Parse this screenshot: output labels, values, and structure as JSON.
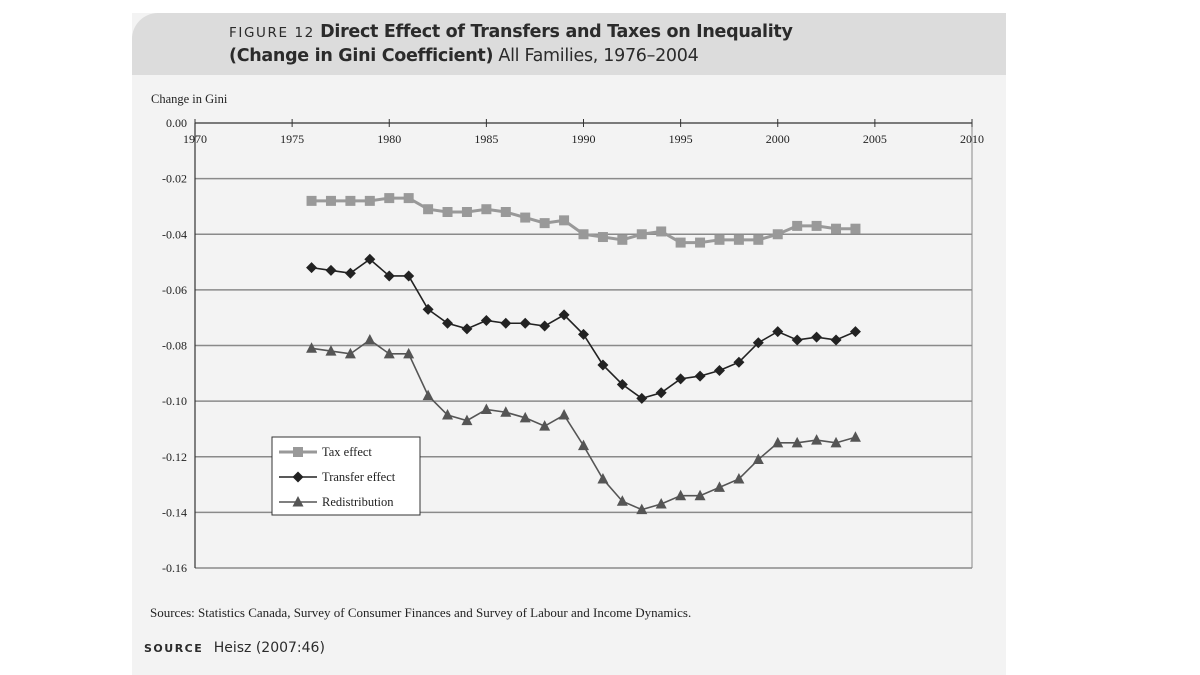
{
  "header": {
    "figure_label": "FIGURE 12",
    "title_line1": "Direct Effect of Transfers and Taxes on Inequality",
    "title_line2_bold": "(Change in Gini Coefficient)",
    "title_line2_rest": "All Families, 1976–2004"
  },
  "chart_data": {
    "type": "line",
    "title": "",
    "ylabel": "Change in Gini",
    "xlabel": "",
    "xlim": [
      1970,
      2010
    ],
    "ylim": [
      -0.16,
      0.0
    ],
    "x_ticks": [
      1970,
      1975,
      1980,
      1985,
      1990,
      1995,
      2000,
      2005,
      2010
    ],
    "y_ticks": [
      "0.00",
      "-0.02",
      "-0.04",
      "-0.06",
      "-0.08",
      "-0.10",
      "-0.12",
      "-0.14",
      "-0.16"
    ],
    "grid": "horizontal",
    "legend_position": "lower-left",
    "x": [
      1976,
      1977,
      1978,
      1979,
      1980,
      1981,
      1982,
      1983,
      1984,
      1985,
      1986,
      1987,
      1988,
      1989,
      1990,
      1991,
      1992,
      1993,
      1994,
      1995,
      1996,
      1997,
      1998,
      1999,
      2000,
      2001,
      2002,
      2003,
      2004
    ],
    "series": [
      {
        "name": "Tax effect",
        "marker": "square",
        "color": "#999999",
        "values": [
          -0.028,
          -0.028,
          -0.028,
          -0.028,
          -0.027,
          -0.027,
          -0.031,
          -0.032,
          -0.032,
          -0.031,
          -0.032,
          -0.034,
          -0.036,
          -0.035,
          -0.04,
          -0.041,
          -0.042,
          -0.04,
          -0.039,
          -0.043,
          -0.043,
          -0.042,
          -0.042,
          -0.042,
          -0.04,
          -0.037,
          -0.037,
          -0.038,
          -0.038
        ]
      },
      {
        "name": "Transfer effect",
        "marker": "diamond",
        "color": "#222222",
        "values": [
          -0.052,
          -0.053,
          -0.054,
          -0.049,
          -0.055,
          -0.055,
          -0.067,
          -0.072,
          -0.074,
          -0.071,
          -0.072,
          -0.072,
          -0.073,
          -0.069,
          -0.076,
          -0.087,
          -0.094,
          -0.099,
          -0.097,
          -0.092,
          -0.091,
          -0.089,
          -0.086,
          -0.079,
          -0.075,
          -0.078,
          -0.077,
          -0.078,
          -0.075
        ]
      },
      {
        "name": "Redistribution",
        "marker": "triangle",
        "color": "#555555",
        "values": [
          -0.081,
          -0.082,
          -0.083,
          -0.078,
          -0.083,
          -0.083,
          -0.098,
          -0.105,
          -0.107,
          -0.103,
          -0.104,
          -0.106,
          -0.109,
          -0.105,
          -0.116,
          -0.128,
          -0.136,
          -0.139,
          -0.137,
          -0.134,
          -0.134,
          -0.131,
          -0.128,
          -0.121,
          -0.115,
          -0.115,
          -0.114,
          -0.115,
          -0.113
        ]
      }
    ]
  },
  "footer": {
    "sources_note": "Sources: Statistics Canada, Survey of Consumer Finances and Survey of Labour and Income Dynamics.",
    "source_label": "SOURCE",
    "source_text": "Heisz (2007:46)"
  }
}
